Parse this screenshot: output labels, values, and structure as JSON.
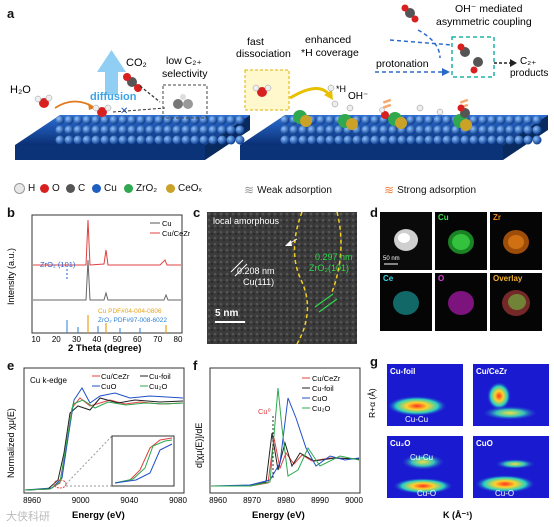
{
  "panels": {
    "a": {
      "label": "a",
      "texts": {
        "h2o": "H₂O",
        "diffusion": "diffusion",
        "co2": "CO₂",
        "low_c2": "low C₂₊",
        "selectivity": "selectivity",
        "fast": "fast",
        "dissociation": "dissociation",
        "enhanced": "enhanced",
        "h_coverage": "*H coverage",
        "h_star": "*H",
        "oh_minus": "OH⁻",
        "protonation": "protonation",
        "oh_mediated": "OH⁻ mediated",
        "asym": "asymmetric coupling",
        "c2": "C₂₊",
        "products": "products"
      }
    },
    "legend": {
      "items": [
        {
          "symbol": "H",
          "color": "#e8e8e8"
        },
        {
          "symbol": "O",
          "color": "#d92020"
        },
        {
          "symbol": "C",
          "color": "#555555"
        },
        {
          "symbol": "Cu",
          "color": "#1f5fbf"
        },
        {
          "symbol": "ZrO₂",
          "color": "#2fa84f"
        },
        {
          "symbol": "CeOₓ",
          "color": "#c9a227"
        }
      ],
      "weak": "Weak adsorption",
      "strong": "Strong adsorption"
    },
    "b": {
      "label": "b",
      "ylabel": "Intensity (a.u.)",
      "xlabel": "2 Theta (degree)",
      "legend": [
        "Cu",
        "Cu/CeZr"
      ],
      "zro2_label": "ZrO₂ (101)",
      "pdf1": "Cu PDF#04-004-0806",
      "pdf2": "ZrO₂ PDF#97-008-6022",
      "xticks": [
        "10",
        "20",
        "30",
        "40",
        "50",
        "60",
        "70",
        "80"
      ]
    },
    "c": {
      "label": "c",
      "local": "local amorphous",
      "d1": "0.208 nm",
      "d1b": "Cu(111)",
      "d2": "0.297 nm",
      "d2b": "ZrO₂(101)",
      "scale": "5 nm"
    },
    "d": {
      "label": "d",
      "scale": "50 nm",
      "maps": [
        "Cu",
        "Zr",
        "Ce",
        "O",
        "Overlay"
      ]
    },
    "e": {
      "label": "e",
      "title": "Cu k-edge",
      "ylabel": "Normalized χμ(E)",
      "xlabel": "Energy (eV)",
      "legend": [
        "Cu/CeZr",
        "CuO",
        "Cu-foil",
        "Cu₂O"
      ],
      "xticks": [
        "8960",
        "9000",
        "9040",
        "9080"
      ]
    },
    "f": {
      "label": "f",
      "ylabel": "d[χμ(E)]/dE",
      "xlabel": "Energy (eV)",
      "cu0": "Cu⁰",
      "legend": [
        "Cu/CeZr",
        "Cu-foil",
        "CuO",
        "Cu₂O"
      ],
      "xticks": [
        "8960",
        "8970",
        "8980",
        "8990",
        "9000"
      ]
    },
    "g": {
      "label": "g",
      "ylabel": "R+α (Å)",
      "xlabel": "K (Å⁻¹)",
      "maps": [
        {
          "title": "Cu-foil",
          "tag": "Cu-Cu"
        },
        {
          "title": "Cu/CeZr",
          "tag": ""
        },
        {
          "title": "Cu₂O",
          "tag": "Cu-Cu",
          "tag2": "Cu-O"
        },
        {
          "title": "CuO",
          "tag": "Cu-O"
        }
      ]
    }
  },
  "watermark": "大侠科研"
}
